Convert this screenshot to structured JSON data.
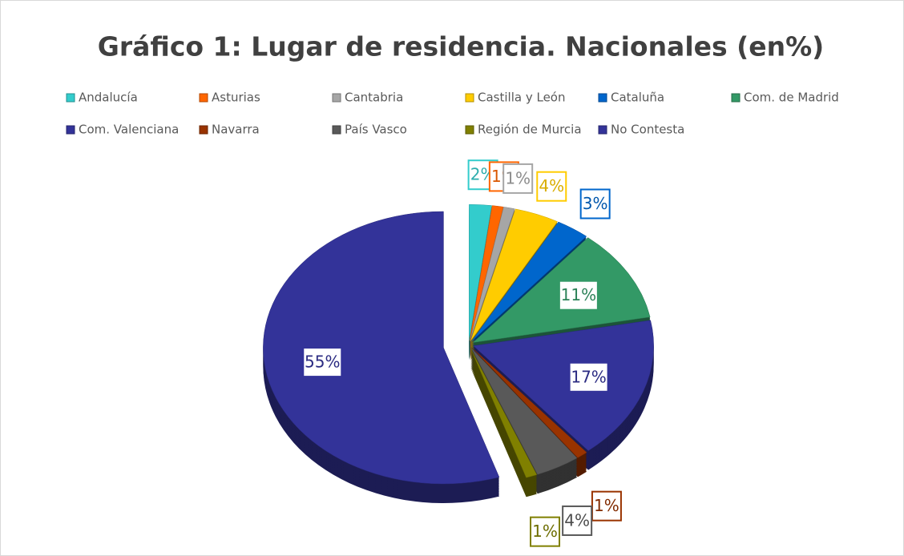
{
  "chart_data": {
    "type": "pie",
    "title": "Gráfico 1: Lugar de residencia. Nacionales (en%)",
    "categories": [
      "Andalucía",
      "Asturias",
      "Cantabria",
      "Castilla y León",
      "Cataluña",
      "Com. de Madrid",
      "Com. Valenciana",
      "Navarra",
      "País Vasco",
      "Región de Murcia",
      "No Contesta"
    ],
    "values": [
      2,
      1,
      1,
      4,
      3,
      11,
      17,
      1,
      4,
      1,
      55
    ],
    "value_labels": [
      "2%",
      "1%",
      "1%",
      "4%",
      "3%",
      "11%",
      "17%",
      "1%",
      "4%",
      "1%",
      "55%"
    ],
    "colors": [
      "#33cccc",
      "#ff6600",
      "#a6a6a6",
      "#ffcc00",
      "#0066cc",
      "#339966",
      "#333399",
      "#993300",
      "#595959",
      "#808000",
      "#333399"
    ],
    "legend": "top"
  }
}
